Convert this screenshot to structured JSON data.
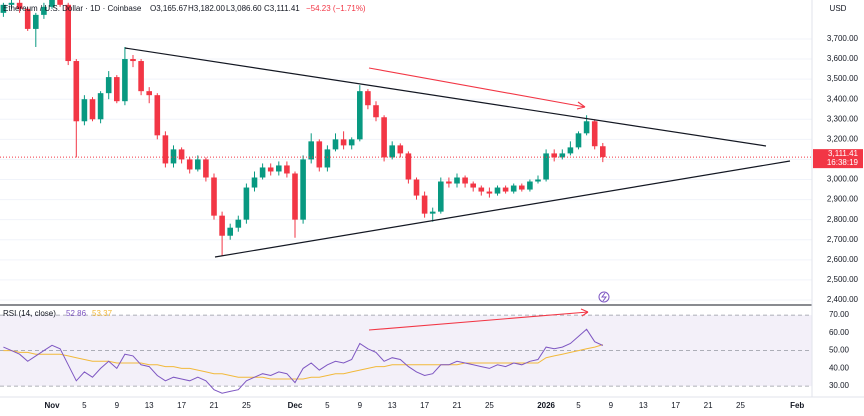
{
  "chart_data": [
    {
      "type": "candlestick",
      "title": "Ethereum / U.S. Dollar · 1D · Coinbase",
      "ohlc_labels": [
        "O3,165.67",
        "H3,182.00",
        "L3,086.60",
        "C3,111.41",
        "−54.23 (−1.71%)"
      ],
      "y_unit": "USD",
      "price_label": "3,111.41",
      "countdown": "16:38:19",
      "up_color": "#089981",
      "down_color": "#f23645",
      "categories": [
        null,
        null,
        null,
        null,
        null,
        null,
        "Nov",
        null,
        null,
        null,
        "5",
        null,
        null,
        null,
        "9",
        null,
        null,
        null,
        "13",
        null,
        null,
        null,
        "17",
        null,
        null,
        null,
        "21",
        null,
        null,
        null,
        "25",
        null,
        null,
        null,
        null,
        null,
        "Dec",
        null,
        null,
        null,
        "5",
        null,
        null,
        null,
        "9",
        null,
        null,
        null,
        "13",
        null,
        null,
        null,
        "17",
        null,
        null,
        null,
        "21",
        null,
        null,
        null,
        "25",
        null,
        null,
        null,
        null,
        null,
        null,
        "2026",
        null,
        null,
        null,
        "5",
        null,
        null,
        null,
        "9",
        null,
        null,
        null,
        "13",
        null,
        null,
        null,
        "17",
        null,
        null,
        null,
        "21",
        null,
        null,
        null,
        "25",
        null,
        null,
        null,
        null,
        null,
        null,
        "Feb"
      ],
      "open": [
        3830,
        3870,
        3880,
        3850,
        3750,
        3820,
        3860,
        3900,
        3870,
        3590,
        3290,
        3400,
        3300,
        3430,
        3510,
        3390,
        3600,
        3590,
        3440,
        3420,
        3220,
        3080,
        3150,
        3100,
        3050,
        3100,
        3010,
        2820,
        2720,
        2760,
        2800,
        2960,
        3010,
        3060,
        3040,
        3070,
        3030,
        2800,
        3100,
        3190,
        3060,
        3150,
        3200,
        3170,
        3200,
        3440,
        3370,
        3310,
        3110,
        3170,
        3130,
        3000,
        2920,
        2830,
        2840,
        2990,
        2980,
        3010,
        2980,
        2960,
        2940,
        2930,
        2960,
        2940,
        2970,
        2950,
        2990,
        3000,
        3130,
        3110,
        3130,
        3160,
        3230,
        3290,
        3165.67,
        null,
        null,
        null,
        null,
        null,
        null,
        null,
        null,
        null,
        null,
        null,
        null,
        null,
        null,
        null,
        null,
        null,
        null,
        null,
        null,
        null,
        null,
        null,
        null
      ],
      "high": [
        3880,
        3895,
        3895,
        3860,
        3830,
        3880,
        3900,
        3905,
        3880,
        3600,
        3420,
        3410,
        3440,
        3540,
        3520,
        3660,
        3620,
        3600,
        3460,
        3430,
        3240,
        3170,
        3160,
        3110,
        3120,
        3110,
        3030,
        2840,
        2780,
        2820,
        2980,
        3040,
        3080,
        3080,
        3090,
        3090,
        3040,
        3120,
        3230,
        3200,
        3170,
        3230,
        3240,
        3210,
        3470,
        3450,
        3390,
        3320,
        3190,
        3180,
        3140,
        3010,
        2940,
        2860,
        3010,
        3010,
        3030,
        3020,
        2990,
        2970,
        2960,
        2970,
        2970,
        2980,
        2980,
        3000,
        3020,
        3150,
        3150,
        3150,
        3190,
        3240,
        3320,
        3300,
        3182,
        null,
        null,
        null,
        null,
        null,
        null,
        null,
        null,
        null,
        null,
        null,
        null,
        null,
        null,
        null,
        null,
        null,
        null,
        null,
        null,
        null,
        null,
        null,
        null
      ],
      "low": [
        3810,
        3850,
        3830,
        3740,
        3660,
        3800,
        3850,
        3860,
        3570,
        3110,
        3270,
        3290,
        3280,
        3400,
        3380,
        3370,
        3560,
        3420,
        3380,
        3200,
        3060,
        3060,
        3080,
        3030,
        3040,
        2990,
        2800,
        2620,
        2700,
        2740,
        2780,
        2940,
        3000,
        3020,
        3020,
        3010,
        2710,
        2780,
        3080,
        3040,
        3040,
        3140,
        3150,
        3150,
        3190,
        3350,
        3290,
        3090,
        3100,
        3110,
        2980,
        2900,
        2810,
        2790,
        2830,
        2960,
        2960,
        2960,
        2940,
        2920,
        2910,
        2920,
        2930,
        2930,
        2940,
        2940,
        2980,
        2990,
        3090,
        3100,
        3120,
        3150,
        3220,
        3150,
        3086.6,
        null,
        null,
        null,
        null,
        null,
        null,
        null,
        null,
        null,
        null,
        null,
        null,
        null,
        null,
        null,
        null,
        null,
        null,
        null,
        null,
        null,
        null,
        null,
        null
      ],
      "close": [
        3870,
        3880,
        3850,
        3750,
        3820,
        3860,
        3900,
        3870,
        3590,
        3290,
        3400,
        3300,
        3430,
        3510,
        3390,
        3600,
        3590,
        3440,
        3420,
        3220,
        3080,
        3150,
        3100,
        3050,
        3100,
        3010,
        2820,
        2720,
        2760,
        2800,
        2960,
        3010,
        3060,
        3040,
        3070,
        3030,
        2800,
        3100,
        3190,
        3060,
        3150,
        3200,
        3170,
        3200,
        3440,
        3370,
        3310,
        3110,
        3170,
        3130,
        3000,
        2920,
        2830,
        2840,
        2990,
        2980,
        3010,
        2980,
        2960,
        2940,
        2930,
        2960,
        2940,
        2970,
        2950,
        2990,
        3000,
        3130,
        3110,
        3130,
        3160,
        3230,
        3290,
        3165.67,
        3111.41,
        null,
        null,
        null,
        null,
        null,
        null,
        null,
        null,
        null,
        null,
        null,
        null,
        null,
        null,
        null,
        null,
        null,
        null,
        null,
        null,
        null,
        null,
        null,
        null
      ],
      "ylim": [
        2375,
        3894
      ],
      "yticks": [
        {
          "value": 2400,
          "label": "2,400.00"
        },
        {
          "value": 2500,
          "label": "2,500.00"
        },
        {
          "value": 2600,
          "label": "2,600.00"
        },
        {
          "value": 2700,
          "label": "2,700.00"
        },
        {
          "value": 2800,
          "label": "2,800.00"
        },
        {
          "value": 2900,
          "label": "2,900.00"
        },
        {
          "value": 3000,
          "label": "3,000.00"
        },
        {
          "value": 3100,
          "label": "3,100.00"
        },
        {
          "value": 3200,
          "label": "3,200.00"
        },
        {
          "value": 3300,
          "label": "3,300.00"
        },
        {
          "value": 3400,
          "label": "3,400.00"
        },
        {
          "value": 3500,
          "label": "3,500.00"
        },
        {
          "value": 3600,
          "label": "3,600.00"
        },
        {
          "value": 3700,
          "label": "3,700.00"
        }
      ]
    },
    {
      "type": "line",
      "title": "RSI (14, close)",
      "series": [
        {
          "color": "#7e57c2",
          "last_value_label": "52.86",
          "values": [
            52,
            50,
            48,
            44,
            47,
            50,
            53,
            51,
            42,
            33,
            38,
            35,
            40,
            44,
            40,
            48,
            47,
            42,
            41,
            36,
            33,
            35,
            34,
            33,
            35,
            33,
            28,
            26,
            27,
            28,
            33,
            35,
            37,
            36,
            38,
            37,
            32,
            40,
            43,
            39,
            42,
            44,
            43,
            45,
            54,
            51,
            49,
            44,
            46,
            45,
            41,
            38,
            36,
            37,
            42,
            42,
            44,
            43,
            42,
            41,
            40,
            42,
            41,
            43,
            42,
            44,
            45,
            52,
            51,
            52,
            54,
            58,
            62,
            55,
            52.86
          ]
        },
        {
          "color": "#f2b93b",
          "last_value_label": "53.37",
          "values": [
            50,
            50,
            49,
            49,
            48,
            48,
            48,
            48,
            47,
            46,
            45,
            44,
            44,
            44,
            43,
            43,
            43,
            43,
            42,
            42,
            41,
            41,
            40,
            40,
            39,
            38,
            37,
            37,
            36,
            35,
            35,
            35,
            35,
            34,
            34,
            34,
            34,
            34,
            35,
            35,
            36,
            37,
            37,
            38,
            39,
            40,
            41,
            41,
            42,
            42,
            42,
            42,
            42,
            42,
            42,
            42,
            42,
            43,
            43,
            43,
            43,
            43,
            43,
            43,
            43,
            43,
            43,
            46,
            47,
            48,
            49,
            50,
            51,
            52,
            53.37
          ]
        }
      ],
      "ylim": [
        25,
        74
      ],
      "yticks": [
        {
          "value": 30,
          "label": "30.00"
        },
        {
          "value": 40,
          "label": "40.00"
        },
        {
          "value": 50,
          "label": "50.00"
        },
        {
          "value": 60,
          "label": "60.00"
        },
        {
          "value": 70,
          "label": "70.00"
        }
      ]
    }
  ]
}
